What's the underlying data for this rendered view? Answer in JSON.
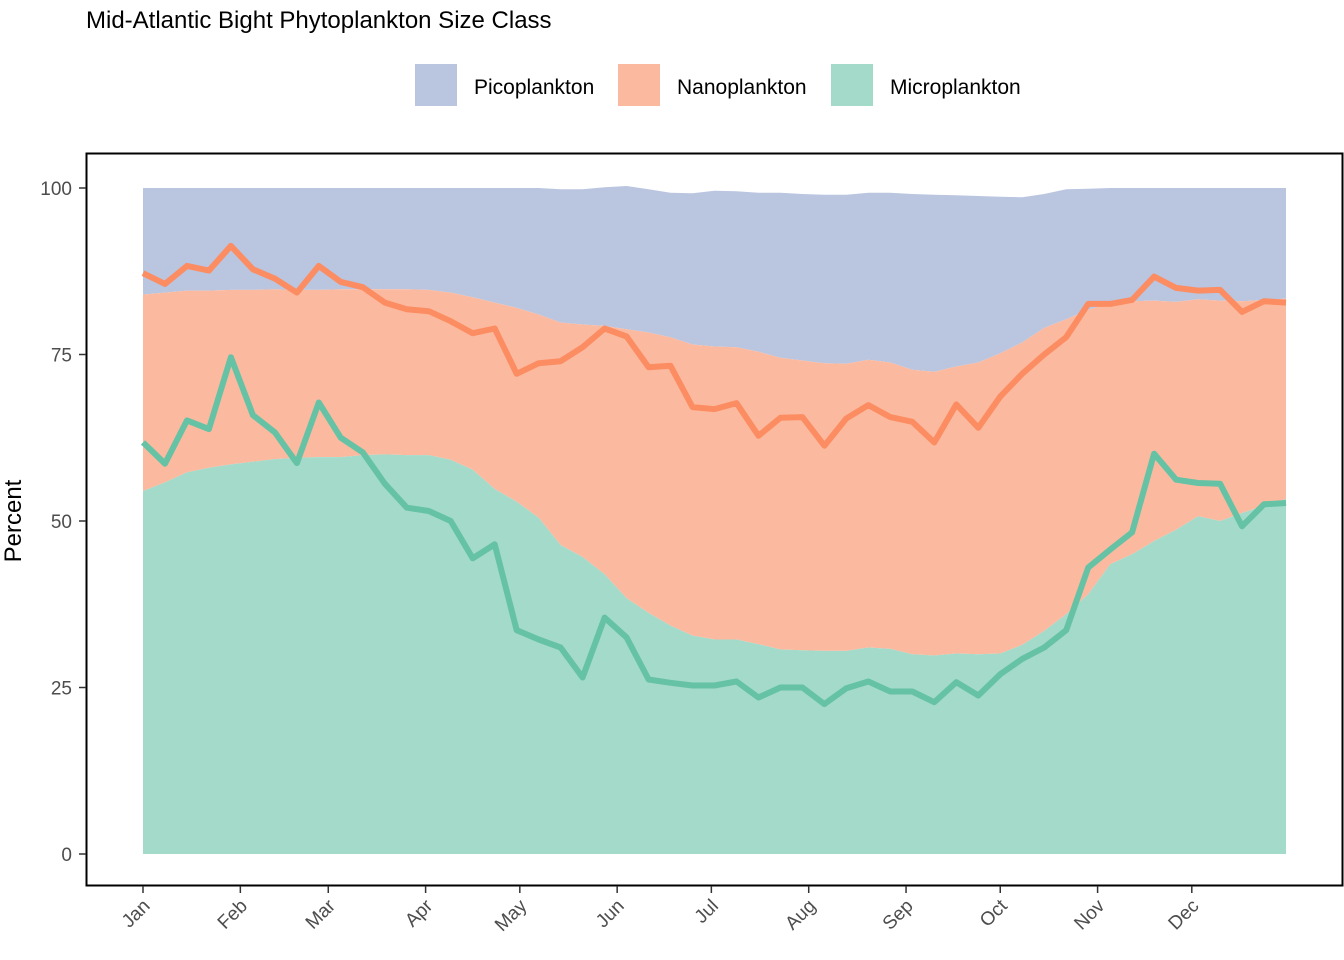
{
  "chart_data": {
    "type": "area",
    "title": "Mid-Atlantic Bight Phytoplankton Size Class",
    "xlabel": "",
    "ylabel": "Percent",
    "ylim": [
      0,
      100
    ],
    "yticks": [
      0,
      25,
      50,
      75,
      100
    ],
    "xticks": [
      "Jan",
      "Feb",
      "Mar",
      "Apr",
      "May",
      "Jun",
      "Jul",
      "Aug",
      "Sep",
      "Oct",
      "Nov",
      "Dec"
    ],
    "legend_position": "top",
    "grid": false,
    "colors": {
      "pico_area": "#bac5e0",
      "nano_area": "#fbbaa0",
      "micro_area": "#a3dac9",
      "nano_line": "#fc8d62",
      "micro_line": "#66c2a5"
    },
    "legend": [
      {
        "label": "Picoplankton",
        "color": "#bac5e0"
      },
      {
        "label": "Nanoplankton",
        "color": "#fbbaa0"
      },
      {
        "label": "Microplankton",
        "color": "#a3dac9"
      }
    ],
    "x": [
      1,
      2,
      3,
      4,
      5,
      6,
      7,
      8,
      9,
      10,
      11,
      12,
      13,
      14,
      15,
      16,
      17,
      18,
      19,
      20,
      21,
      22,
      23,
      24,
      25,
      26,
      27,
      28,
      29,
      30,
      31,
      32,
      33,
      34,
      35,
      36,
      37,
      38,
      39,
      40,
      41,
      42,
      43,
      44,
      45,
      46,
      47,
      48,
      49,
      50,
      51,
      52,
      53
    ],
    "areas": {
      "micro_upper": [
        54.5,
        55.8,
        57.3,
        58.0,
        58.5,
        58.9,
        59.3,
        59.5,
        59.6,
        59.6,
        59.9,
        60.0,
        59.9,
        59.9,
        59.2,
        57.7,
        54.8,
        52.9,
        50.5,
        46.4,
        44.6,
        42.0,
        38.4,
        36.2,
        34.3,
        32.8,
        32.2,
        32.2,
        31.5,
        30.7,
        30.6,
        30.5,
        30.5,
        31.0,
        30.8,
        30.0,
        29.8,
        30.1,
        30.0,
        30.1,
        31.4,
        33.5,
        36.0,
        39.0,
        43.5,
        45.0,
        47.0,
        48.7,
        50.7,
        50.0,
        51.2,
        52.3,
        53.3
      ],
      "nano_upper": [
        84.0,
        84.3,
        84.6,
        84.6,
        84.7,
        84.7,
        84.8,
        84.7,
        84.7,
        84.8,
        84.8,
        84.8,
        84.8,
        84.7,
        84.3,
        83.6,
        82.8,
        82.0,
        81.0,
        79.8,
        79.5,
        79.3,
        78.8,
        78.3,
        77.6,
        76.5,
        76.2,
        76.1,
        75.4,
        74.5,
        74.1,
        73.7,
        73.6,
        74.2,
        73.8,
        72.7,
        72.4,
        73.2,
        73.8,
        75.2,
        76.8,
        79.0,
        80.3,
        81.7,
        82.7,
        83.0,
        83.1,
        82.9,
        83.3,
        83.1,
        83.0,
        83.2,
        83.4
      ],
      "pico_upper": [
        100,
        100,
        100,
        100,
        100,
        100,
        100,
        100,
        100,
        100,
        100,
        100,
        100,
        100,
        100,
        100,
        100,
        100,
        100,
        99.8,
        99.8,
        100.1,
        100.3,
        99.8,
        99.3,
        99.2,
        99.6,
        99.5,
        99.3,
        99.3,
        99.1,
        99.0,
        99.0,
        99.3,
        99.3,
        99.1,
        99.0,
        98.9,
        98.8,
        98.7,
        98.6,
        99.1,
        99.8,
        99.9,
        100,
        100,
        100,
        100,
        100,
        100,
        100,
        100,
        100
      ]
    },
    "series": [
      {
        "name": "Nanoplankton",
        "values": [
          87.2,
          85.6,
          88.3,
          87.6,
          91.3,
          87.8,
          86.4,
          84.3,
          88.3,
          85.9,
          85.1,
          82.8,
          81.8,
          81.5,
          80.0,
          78.2,
          78.9,
          72.1,
          73.7,
          74.0,
          76.1,
          78.9,
          77.7,
          73.1,
          73.3,
          67.1,
          66.8,
          67.7,
          62.8,
          65.5,
          65.6,
          61.3,
          65.4,
          67.4,
          65.6,
          64.9,
          61.8,
          67.5,
          64.0,
          68.7,
          72.1,
          75.0,
          77.6,
          82.6,
          82.6,
          83.2,
          86.7,
          85.0,
          84.6,
          84.7,
          81.4,
          83.0,
          82.8
        ]
      },
      {
        "name": "Microplankton",
        "values": [
          61.8,
          58.6,
          65.1,
          63.8,
          74.6,
          65.9,
          63.3,
          58.7,
          67.8,
          62.5,
          60.3,
          55.6,
          52.0,
          51.5,
          50.0,
          44.4,
          46.5,
          33.6,
          32.2,
          31.0,
          26.5,
          35.5,
          32.5,
          26.2,
          25.7,
          25.3,
          25.3,
          25.9,
          23.5,
          25.0,
          25.0,
          22.5,
          24.9,
          25.9,
          24.4,
          24.4,
          22.8,
          25.8,
          23.8,
          27.0,
          29.3,
          31.0,
          33.6,
          43.0,
          45.7,
          48.3,
          60.1,
          56.2,
          55.7,
          55.6,
          49.2,
          52.5,
          52.7
        ]
      }
    ]
  }
}
